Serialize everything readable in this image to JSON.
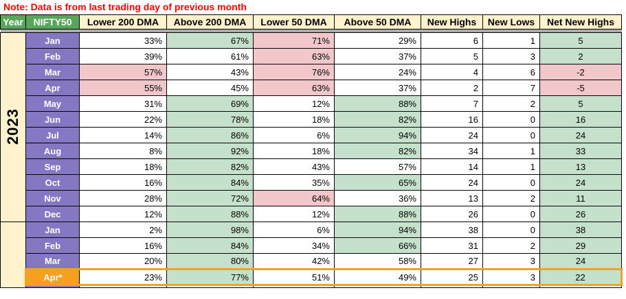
{
  "note": "Note: Data is from last trading day of previous month",
  "columns": [
    "Year",
    "NIFTY50",
    "Lower 200 DMA",
    "Above 200 DMA",
    "Lower 50 DMA",
    "Above 50 DMA",
    "New Highs",
    "New Lows",
    "Net New Highs"
  ],
  "colors": {
    "note_red": "#FF0000",
    "header_green": "#57A65A",
    "header_cream": "#FFF2CC",
    "month_purple": "#8677C2",
    "green_fill": "#C5E0CB",
    "pink_fill": "#F2C7C9",
    "selected_orange": "#F5A01E",
    "grey_band": "#ACACAC",
    "grid_border": "#000000"
  },
  "years": [
    {
      "label": "2023",
      "rowspan": 12,
      "rows": [
        {
          "month": "Jan",
          "cells": [
            {
              "v": "33%",
              "bg": ""
            },
            {
              "v": "67%",
              "bg": "green"
            },
            {
              "v": "71%",
              "bg": "pink"
            },
            {
              "v": "29%",
              "bg": ""
            },
            {
              "v": "6",
              "bg": ""
            },
            {
              "v": "1",
              "bg": ""
            },
            {
              "v": "5",
              "bg": "green"
            }
          ]
        },
        {
          "month": "Feb",
          "cells": [
            {
              "v": "39%",
              "bg": ""
            },
            {
              "v": "61%",
              "bg": ""
            },
            {
              "v": "63%",
              "bg": "pink"
            },
            {
              "v": "37%",
              "bg": ""
            },
            {
              "v": "5",
              "bg": ""
            },
            {
              "v": "3",
              "bg": ""
            },
            {
              "v": "2",
              "bg": "green"
            }
          ]
        },
        {
          "month": "Mar",
          "cells": [
            {
              "v": "57%",
              "bg": "pink"
            },
            {
              "v": "43%",
              "bg": ""
            },
            {
              "v": "76%",
              "bg": "pink"
            },
            {
              "v": "24%",
              "bg": ""
            },
            {
              "v": "4",
              "bg": ""
            },
            {
              "v": "6",
              "bg": ""
            },
            {
              "v": "-2",
              "bg": "pink"
            }
          ]
        },
        {
          "month": "Apr",
          "cells": [
            {
              "v": "55%",
              "bg": "pink"
            },
            {
              "v": "45%",
              "bg": ""
            },
            {
              "v": "63%",
              "bg": "pink"
            },
            {
              "v": "37%",
              "bg": ""
            },
            {
              "v": "2",
              "bg": ""
            },
            {
              "v": "7",
              "bg": ""
            },
            {
              "v": "-5",
              "bg": "pink"
            }
          ]
        },
        {
          "month": "May",
          "cells": [
            {
              "v": "31%",
              "bg": ""
            },
            {
              "v": "69%",
              "bg": "green"
            },
            {
              "v": "12%",
              "bg": ""
            },
            {
              "v": "88%",
              "bg": "green"
            },
            {
              "v": "7",
              "bg": ""
            },
            {
              "v": "2",
              "bg": ""
            },
            {
              "v": "5",
              "bg": "green"
            }
          ]
        },
        {
          "month": "Jun",
          "cells": [
            {
              "v": "22%",
              "bg": ""
            },
            {
              "v": "78%",
              "bg": "green"
            },
            {
              "v": "18%",
              "bg": ""
            },
            {
              "v": "82%",
              "bg": "green"
            },
            {
              "v": "16",
              "bg": ""
            },
            {
              "v": "0",
              "bg": ""
            },
            {
              "v": "16",
              "bg": "green"
            }
          ]
        },
        {
          "month": "Jul",
          "cells": [
            {
              "v": "14%",
              "bg": ""
            },
            {
              "v": "86%",
              "bg": "green"
            },
            {
              "v": "6%",
              "bg": ""
            },
            {
              "v": "94%",
              "bg": "green"
            },
            {
              "v": "24",
              "bg": ""
            },
            {
              "v": "0",
              "bg": ""
            },
            {
              "v": "24",
              "bg": "green"
            }
          ]
        },
        {
          "month": "Aug",
          "cells": [
            {
              "v": "8%",
              "bg": ""
            },
            {
              "v": "92%",
              "bg": "green"
            },
            {
              "v": "18%",
              "bg": ""
            },
            {
              "v": "82%",
              "bg": "green"
            },
            {
              "v": "34",
              "bg": ""
            },
            {
              "v": "1",
              "bg": ""
            },
            {
              "v": "33",
              "bg": "green"
            }
          ]
        },
        {
          "month": "Sep",
          "cells": [
            {
              "v": "18%",
              "bg": ""
            },
            {
              "v": "82%",
              "bg": "green"
            },
            {
              "v": "43%",
              "bg": ""
            },
            {
              "v": "57%",
              "bg": ""
            },
            {
              "v": "14",
              "bg": ""
            },
            {
              "v": "1",
              "bg": ""
            },
            {
              "v": "13",
              "bg": "green"
            }
          ]
        },
        {
          "month": "Oct",
          "cells": [
            {
              "v": "16%",
              "bg": ""
            },
            {
              "v": "84%",
              "bg": "green"
            },
            {
              "v": "35%",
              "bg": ""
            },
            {
              "v": "65%",
              "bg": "green"
            },
            {
              "v": "24",
              "bg": ""
            },
            {
              "v": "0",
              "bg": ""
            },
            {
              "v": "24",
              "bg": "green"
            }
          ]
        },
        {
          "month": "Nov",
          "cells": [
            {
              "v": "28%",
              "bg": ""
            },
            {
              "v": "72%",
              "bg": "green"
            },
            {
              "v": "64%",
              "bg": "pink"
            },
            {
              "v": "36%",
              "bg": ""
            },
            {
              "v": "13",
              "bg": ""
            },
            {
              "v": "2",
              "bg": ""
            },
            {
              "v": "11",
              "bg": "green"
            }
          ]
        },
        {
          "month": "Dec",
          "cells": [
            {
              "v": "12%",
              "bg": ""
            },
            {
              "v": "88%",
              "bg": "green"
            },
            {
              "v": "12%",
              "bg": ""
            },
            {
              "v": "88%",
              "bg": "green"
            },
            {
              "v": "26",
              "bg": ""
            },
            {
              "v": "0",
              "bg": ""
            },
            {
              "v": "26",
              "bg": "green"
            }
          ]
        }
      ]
    },
    {
      "label": "",
      "rowspan": 5,
      "rows": [
        {
          "month": "Jan",
          "cells": [
            {
              "v": "2%",
              "bg": ""
            },
            {
              "v": "98%",
              "bg": "green"
            },
            {
              "v": "6%",
              "bg": ""
            },
            {
              "v": "94%",
              "bg": "green"
            },
            {
              "v": "38",
              "bg": ""
            },
            {
              "v": "0",
              "bg": ""
            },
            {
              "v": "38",
              "bg": "green"
            }
          ]
        },
        {
          "month": "Feb",
          "cells": [
            {
              "v": "16%",
              "bg": ""
            },
            {
              "v": "84%",
              "bg": "green"
            },
            {
              "v": "34%",
              "bg": ""
            },
            {
              "v": "66%",
              "bg": "green"
            },
            {
              "v": "31",
              "bg": ""
            },
            {
              "v": "2",
              "bg": ""
            },
            {
              "v": "29",
              "bg": "green"
            }
          ]
        },
        {
          "month": "Mar",
          "cells": [
            {
              "v": "20%",
              "bg": ""
            },
            {
              "v": "80%",
              "bg": "green"
            },
            {
              "v": "42%",
              "bg": ""
            },
            {
              "v": "58%",
              "bg": ""
            },
            {
              "v": "27",
              "bg": ""
            },
            {
              "v": "3",
              "bg": ""
            },
            {
              "v": "24",
              "bg": "green"
            }
          ]
        },
        {
          "month": "Apr*",
          "selected": true,
          "cells": [
            {
              "v": "23%",
              "bg": ""
            },
            {
              "v": "77%",
              "bg": "green"
            },
            {
              "v": "51%",
              "bg": ""
            },
            {
              "v": "49%",
              "bg": ""
            },
            {
              "v": "25",
              "bg": ""
            },
            {
              "v": "3",
              "bg": ""
            },
            {
              "v": "22",
              "bg": "green"
            }
          ]
        }
      ]
    }
  ],
  "partial_next_row_visible": true
}
